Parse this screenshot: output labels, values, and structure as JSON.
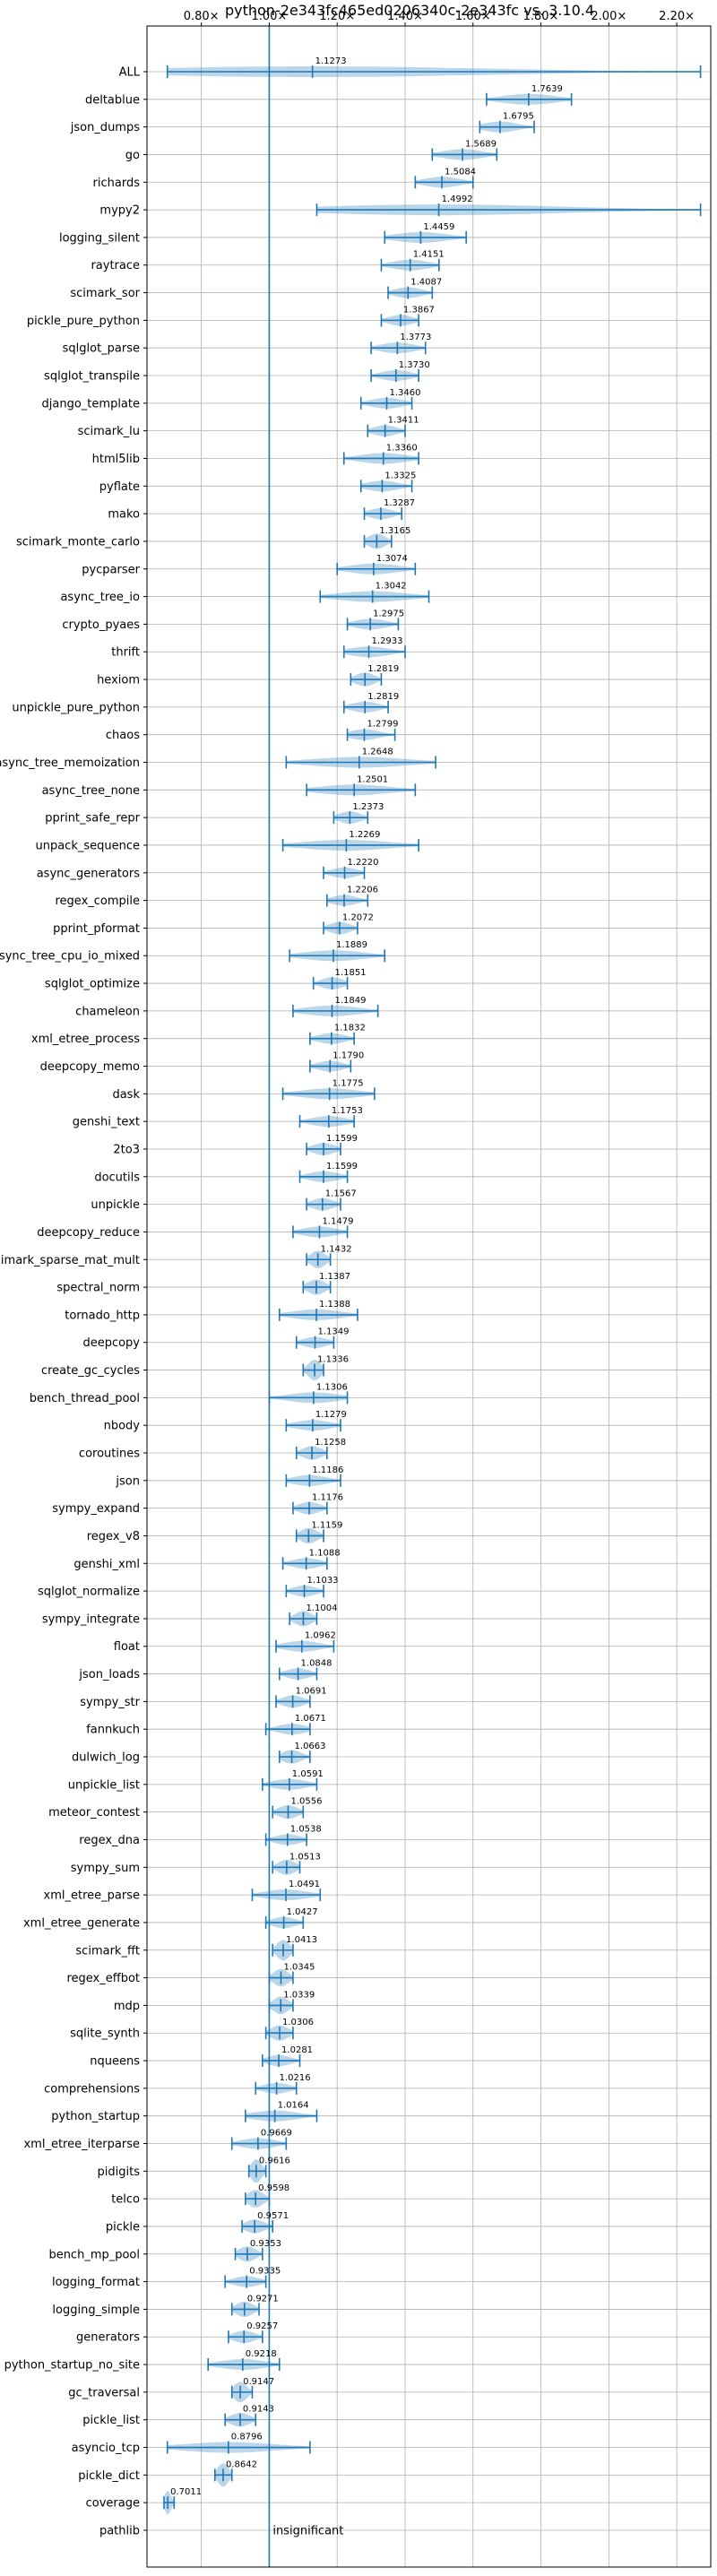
{
  "chart_data": {
    "type": "violin",
    "title": "python-2e343fc465ed0206340c-2e343fc vs. 3.10.4",
    "xlim": [
      0.64,
      2.3
    ],
    "x_ticks": [
      0.8,
      1.0,
      1.2,
      1.4,
      1.6,
      1.8,
      2.0,
      2.2
    ],
    "x_tick_labels": [
      "0.80×",
      "1.00×",
      "1.20×",
      "1.40×",
      "1.60×",
      "1.80×",
      "2.00×",
      "2.20×"
    ],
    "reference_line": 1.0,
    "grid": true,
    "color": "#1f77b4",
    "benchmarks": [
      {
        "name": "ALL",
        "value": 1.1273,
        "label": "1.1273",
        "min": 0.7,
        "max": 2.27
      },
      {
        "name": "deltablue",
        "value": 1.7639,
        "label": "1.7639",
        "min": 1.64,
        "max": 1.89
      },
      {
        "name": "json_dumps",
        "value": 1.6795,
        "label": "1.6795",
        "min": 1.62,
        "max": 1.78
      },
      {
        "name": "go",
        "value": 1.5689,
        "label": "1.5689",
        "min": 1.48,
        "max": 1.67
      },
      {
        "name": "richards",
        "value": 1.5084,
        "label": "1.5084",
        "min": 1.43,
        "max": 1.6
      },
      {
        "name": "mypy2",
        "value": 1.4992,
        "label": "1.4992",
        "min": 1.14,
        "max": 2.27
      },
      {
        "name": "logging_silent",
        "value": 1.4459,
        "label": "1.4459",
        "min": 1.34,
        "max": 1.58
      },
      {
        "name": "raytrace",
        "value": 1.4151,
        "label": "1.4151",
        "min": 1.33,
        "max": 1.5
      },
      {
        "name": "scimark_sor",
        "value": 1.4087,
        "label": "1.4087",
        "min": 1.35,
        "max": 1.48
      },
      {
        "name": "pickle_pure_python",
        "value": 1.3867,
        "label": "1.3867",
        "min": 1.33,
        "max": 1.44
      },
      {
        "name": "sqlglot_parse",
        "value": 1.3773,
        "label": "1.3773",
        "min": 1.3,
        "max": 1.46
      },
      {
        "name": "sqlglot_transpile",
        "value": 1.373,
        "label": "1.3730",
        "min": 1.3,
        "max": 1.44
      },
      {
        "name": "django_template",
        "value": 1.346,
        "label": "1.3460",
        "min": 1.27,
        "max": 1.42
      },
      {
        "name": "scimark_lu",
        "value": 1.3411,
        "label": "1.3411",
        "min": 1.29,
        "max": 1.4
      },
      {
        "name": "html5lib",
        "value": 1.336,
        "label": "1.3360",
        "min": 1.22,
        "max": 1.44
      },
      {
        "name": "pyflate",
        "value": 1.3325,
        "label": "1.3325",
        "min": 1.27,
        "max": 1.42
      },
      {
        "name": "mako",
        "value": 1.3287,
        "label": "1.3287",
        "min": 1.28,
        "max": 1.39
      },
      {
        "name": "scimark_monte_carlo",
        "value": 1.3165,
        "label": "1.3165",
        "min": 1.28,
        "max": 1.36
      },
      {
        "name": "pycparser",
        "value": 1.3074,
        "label": "1.3074",
        "min": 1.2,
        "max": 1.43
      },
      {
        "name": "async_tree_io",
        "value": 1.3042,
        "label": "1.3042",
        "min": 1.15,
        "max": 1.47
      },
      {
        "name": "crypto_pyaes",
        "value": 1.2975,
        "label": "1.2975",
        "min": 1.23,
        "max": 1.38
      },
      {
        "name": "thrift",
        "value": 1.2933,
        "label": "1.2933",
        "min": 1.22,
        "max": 1.4
      },
      {
        "name": "hexiom",
        "value": 1.2819,
        "label": "1.2819",
        "min": 1.24,
        "max": 1.33
      },
      {
        "name": "unpickle_pure_python",
        "value": 1.2819,
        "label": "1.2819",
        "min": 1.22,
        "max": 1.35
      },
      {
        "name": "chaos",
        "value": 1.2799,
        "label": "1.2799",
        "min": 1.23,
        "max": 1.37
      },
      {
        "name": "async_tree_memoization",
        "value": 1.2648,
        "label": "1.2648",
        "min": 1.05,
        "max": 1.49
      },
      {
        "name": "async_tree_none",
        "value": 1.2501,
        "label": "1.2501",
        "min": 1.11,
        "max": 1.43
      },
      {
        "name": "pprint_safe_repr",
        "value": 1.2373,
        "label": "1.2373",
        "min": 1.19,
        "max": 1.29
      },
      {
        "name": "unpack_sequence",
        "value": 1.2269,
        "label": "1.2269",
        "min": 1.04,
        "max": 1.44
      },
      {
        "name": "async_generators",
        "value": 1.222,
        "label": "1.2220",
        "min": 1.16,
        "max": 1.28
      },
      {
        "name": "regex_compile",
        "value": 1.2206,
        "label": "1.2206",
        "min": 1.17,
        "max": 1.29
      },
      {
        "name": "pprint_pformat",
        "value": 1.2072,
        "label": "1.2072",
        "min": 1.16,
        "max": 1.26
      },
      {
        "name": "async_tree_cpu_io_mixed",
        "value": 1.1889,
        "label": "1.1889",
        "min": 1.06,
        "max": 1.34
      },
      {
        "name": "sqlglot_optimize",
        "value": 1.1851,
        "label": "1.1851",
        "min": 1.13,
        "max": 1.23
      },
      {
        "name": "chameleon",
        "value": 1.1849,
        "label": "1.1849",
        "min": 1.07,
        "max": 1.32
      },
      {
        "name": "xml_etree_process",
        "value": 1.1832,
        "label": "1.1832",
        "min": 1.12,
        "max": 1.25
      },
      {
        "name": "deepcopy_memo",
        "value": 1.179,
        "label": "1.1790",
        "min": 1.12,
        "max": 1.24
      },
      {
        "name": "dask",
        "value": 1.1775,
        "label": "1.1775",
        "min": 1.04,
        "max": 1.31
      },
      {
        "name": "genshi_text",
        "value": 1.1753,
        "label": "1.1753",
        "min": 1.09,
        "max": 1.25
      },
      {
        "name": "2to3",
        "value": 1.1599,
        "label": "1.1599",
        "min": 1.11,
        "max": 1.21
      },
      {
        "name": "docutils",
        "value": 1.1599,
        "label": "1.1599",
        "min": 1.09,
        "max": 1.23
      },
      {
        "name": "unpickle",
        "value": 1.1567,
        "label": "1.1567",
        "min": 1.11,
        "max": 1.21
      },
      {
        "name": "deepcopy_reduce",
        "value": 1.1479,
        "label": "1.1479",
        "min": 1.07,
        "max": 1.23
      },
      {
        "name": "scimark_sparse_mat_mult",
        "value": 1.1432,
        "label": "1.1432",
        "min": 1.11,
        "max": 1.18
      },
      {
        "name": "spectral_norm",
        "value": 1.1387,
        "label": "1.1387",
        "min": 1.1,
        "max": 1.18
      },
      {
        "name": "tornado_http",
        "value": 1.1388,
        "label": "1.1388",
        "min": 1.03,
        "max": 1.26
      },
      {
        "name": "deepcopy",
        "value": 1.1349,
        "label": "1.1349",
        "min": 1.08,
        "max": 1.19
      },
      {
        "name": "create_gc_cycles",
        "value": 1.1336,
        "label": "1.1336",
        "min": 1.1,
        "max": 1.16
      },
      {
        "name": "bench_thread_pool",
        "value": 1.1306,
        "label": "1.1306",
        "min": 1.0,
        "max": 1.23
      },
      {
        "name": "nbody",
        "value": 1.1279,
        "label": "1.1279",
        "min": 1.05,
        "max": 1.21
      },
      {
        "name": "coroutines",
        "value": 1.1258,
        "label": "1.1258",
        "min": 1.08,
        "max": 1.17
      },
      {
        "name": "json",
        "value": 1.1186,
        "label": "1.1186",
        "min": 1.05,
        "max": 1.21
      },
      {
        "name": "sympy_expand",
        "value": 1.1176,
        "label": "1.1176",
        "min": 1.07,
        "max": 1.17
      },
      {
        "name": "regex_v8",
        "value": 1.1159,
        "label": "1.1159",
        "min": 1.08,
        "max": 1.16
      },
      {
        "name": "genshi_xml",
        "value": 1.1088,
        "label": "1.1088",
        "min": 1.04,
        "max": 1.17
      },
      {
        "name": "sqlglot_normalize",
        "value": 1.1033,
        "label": "1.1033",
        "min": 1.05,
        "max": 1.16
      },
      {
        "name": "sympy_integrate",
        "value": 1.1004,
        "label": "1.1004",
        "min": 1.06,
        "max": 1.14
      },
      {
        "name": "float",
        "value": 1.0962,
        "label": "1.0962",
        "min": 1.02,
        "max": 1.19
      },
      {
        "name": "json_loads",
        "value": 1.0848,
        "label": "1.0848",
        "min": 1.03,
        "max": 1.14
      },
      {
        "name": "sympy_str",
        "value": 1.0691,
        "label": "1.0691",
        "min": 1.02,
        "max": 1.12
      },
      {
        "name": "fannkuch",
        "value": 1.0671,
        "label": "1.0671",
        "min": 0.99,
        "max": 1.12
      },
      {
        "name": "dulwich_log",
        "value": 1.0663,
        "label": "1.0663",
        "min": 1.03,
        "max": 1.12
      },
      {
        "name": "unpickle_list",
        "value": 1.0591,
        "label": "1.0591",
        "min": 0.98,
        "max": 1.14
      },
      {
        "name": "meteor_contest",
        "value": 1.0556,
        "label": "1.0556",
        "min": 1.01,
        "max": 1.1
      },
      {
        "name": "regex_dna",
        "value": 1.0538,
        "label": "1.0538",
        "min": 0.99,
        "max": 1.11
      },
      {
        "name": "sympy_sum",
        "value": 1.0513,
        "label": "1.0513",
        "min": 1.01,
        "max": 1.09
      },
      {
        "name": "xml_etree_parse",
        "value": 1.0491,
        "label": "1.0491",
        "min": 0.95,
        "max": 1.15
      },
      {
        "name": "xml_etree_generate",
        "value": 1.0427,
        "label": "1.0427",
        "min": 0.99,
        "max": 1.1
      },
      {
        "name": "scimark_fft",
        "value": 1.0413,
        "label": "1.0413",
        "min": 1.01,
        "max": 1.07
      },
      {
        "name": "regex_effbot",
        "value": 1.0345,
        "label": "1.0345",
        "min": 1.0,
        "max": 1.07
      },
      {
        "name": "mdp",
        "value": 1.0339,
        "label": "1.0339",
        "min": 1.0,
        "max": 1.07
      },
      {
        "name": "sqlite_synth",
        "value": 1.0306,
        "label": "1.0306",
        "min": 0.99,
        "max": 1.07
      },
      {
        "name": "nqueens",
        "value": 1.0281,
        "label": "1.0281",
        "min": 0.98,
        "max": 1.09
      },
      {
        "name": "comprehensions",
        "value": 1.0216,
        "label": "1.0216",
        "min": 0.96,
        "max": 1.08
      },
      {
        "name": "python_startup",
        "value": 1.0164,
        "label": "1.0164",
        "min": 0.93,
        "max": 1.14
      },
      {
        "name": "xml_etree_iterparse",
        "value": 0.9669,
        "label": "0.9669",
        "min": 0.89,
        "max": 1.05
      },
      {
        "name": "pidigits",
        "value": 0.9616,
        "label": "0.9616",
        "min": 0.94,
        "max": 0.99
      },
      {
        "name": "telco",
        "value": 0.9598,
        "label": "0.9598",
        "min": 0.93,
        "max": 1.0
      },
      {
        "name": "pickle",
        "value": 0.9571,
        "label": "0.9571",
        "min": 0.92,
        "max": 1.01
      },
      {
        "name": "bench_mp_pool",
        "value": 0.9353,
        "label": "0.9353",
        "min": 0.9,
        "max": 0.98
      },
      {
        "name": "logging_format",
        "value": 0.9335,
        "label": "0.9335",
        "min": 0.87,
        "max": 0.99
      },
      {
        "name": "logging_simple",
        "value": 0.9271,
        "label": "0.9271",
        "min": 0.89,
        "max": 0.97
      },
      {
        "name": "generators",
        "value": 0.9257,
        "label": "0.9257",
        "min": 0.88,
        "max": 0.98
      },
      {
        "name": "python_startup_no_site",
        "value": 0.9218,
        "label": "0.9218",
        "min": 0.82,
        "max": 1.03
      },
      {
        "name": "gc_traversal",
        "value": 0.9147,
        "label": "0.9147",
        "min": 0.89,
        "max": 0.95
      },
      {
        "name": "pickle_list",
        "value": 0.9143,
        "label": "0.9143",
        "min": 0.87,
        "max": 0.96
      },
      {
        "name": "asyncio_tcp",
        "value": 0.8796,
        "label": "0.8796",
        "min": 0.7,
        "max": 1.12
      },
      {
        "name": "pickle_dict",
        "value": 0.8642,
        "label": "0.8642",
        "min": 0.84,
        "max": 0.89
      },
      {
        "name": "coverage",
        "value": 0.7011,
        "label": "0.7011",
        "min": 0.69,
        "max": 0.72
      },
      {
        "name": "pathlib",
        "value": null,
        "label": "insignificant",
        "min": null,
        "max": null
      }
    ]
  }
}
